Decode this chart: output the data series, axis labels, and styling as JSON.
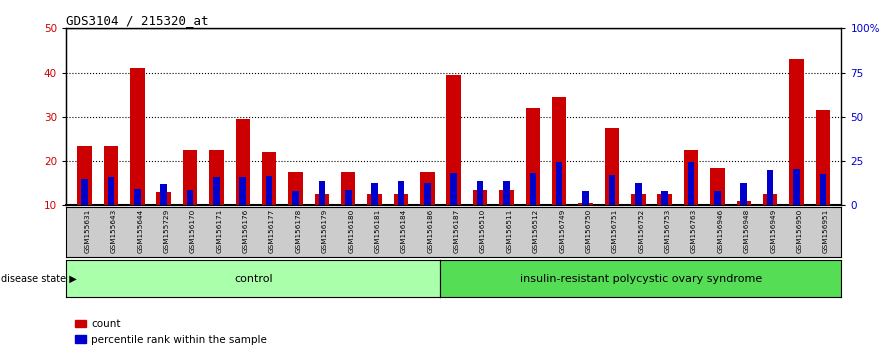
{
  "title": "GDS3104 / 215320_at",
  "samples": [
    "GSM155631",
    "GSM155643",
    "GSM155644",
    "GSM155729",
    "GSM156170",
    "GSM156171",
    "GSM156176",
    "GSM156177",
    "GSM156178",
    "GSM156179",
    "GSM156180",
    "GSM156181",
    "GSM156184",
    "GSM156186",
    "GSM156187",
    "GSM156510",
    "GSM156511",
    "GSM156512",
    "GSM156749",
    "GSM156750",
    "GSM156751",
    "GSM156752",
    "GSM156753",
    "GSM156763",
    "GSM156946",
    "GSM156948",
    "GSM156949",
    "GSM156950",
    "GSM156951"
  ],
  "count": [
    23.5,
    23.5,
    41.0,
    13.0,
    22.5,
    22.5,
    29.5,
    22.0,
    17.5,
    12.5,
    17.5,
    12.5,
    12.5,
    17.5,
    39.5,
    13.5,
    13.5,
    32.0,
    34.5,
    10.5,
    27.5,
    12.5,
    12.5,
    22.5,
    18.5,
    11.0,
    12.5,
    43.0,
    31.5
  ],
  "percentile": [
    15.0,
    16.0,
    9.0,
    12.0,
    8.5,
    16.0,
    16.0,
    16.5,
    8.0,
    13.5,
    8.5,
    12.5,
    13.5,
    12.5,
    18.5,
    14.0,
    14.0,
    18.0,
    24.5,
    8.0,
    17.0,
    12.5,
    8.0,
    24.5,
    8.0,
    12.5,
    20.0,
    20.5,
    17.5
  ],
  "control_count": 14,
  "control_label": "control",
  "disease_label": "insulin-resistant polycystic ovary syndrome",
  "control_color": "#aaffaa",
  "disease_color": "#55dd55",
  "ylim_left": [
    10,
    50
  ],
  "ylim_right": [
    0,
    100
  ],
  "yticks_left": [
    10,
    20,
    30,
    40,
    50
  ],
  "yticks_right": [
    0,
    25,
    50,
    75,
    100
  ],
  "yticklabels_right": [
    "0",
    "25",
    "50",
    "75",
    "100%"
  ],
  "bar_color_count": "#cc0000",
  "bar_color_percentile": "#0000cc",
  "bar_width": 0.55,
  "blue_bar_width": 0.25,
  "bg_color": "#cccccc",
  "plot_bg": "#ffffff",
  "legend_count": "count",
  "legend_percentile": "percentile rank within the sample",
  "disease_state_label": "disease state"
}
